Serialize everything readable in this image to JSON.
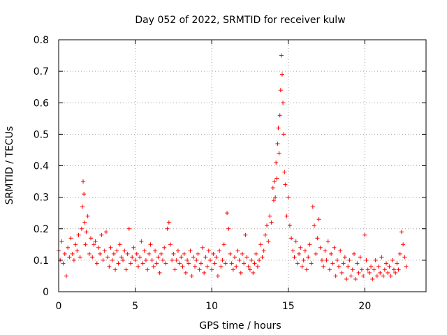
{
  "chart_data": {
    "type": "scatter",
    "title": "Day 052 of 2022, SRMTID for receiver kulw",
    "xlabel": "GPS time / hours",
    "ylabel": "SRMTID / TECUs",
    "xlim": [
      0,
      24
    ],
    "ylim": [
      0,
      0.8
    ],
    "xticks": [
      0,
      5,
      10,
      15,
      20
    ],
    "xtick_labels": [
      "0",
      "5",
      "10",
      "15",
      "20"
    ],
    "yticks": [
      0,
      0.1,
      0.2,
      0.3,
      0.4,
      0.5,
      0.6,
      0.7,
      0.8
    ],
    "ytick_labels": [
      "0",
      "0.1",
      "0.2",
      "0.3",
      "0.4",
      "0.5",
      "0.6",
      "0.7",
      "0.8"
    ],
    "grid": true,
    "marker": "+",
    "marker_color": "#ff0000",
    "series": [
      {
        "name": "SRMTID",
        "x": [
          0.0,
          0.1,
          0.2,
          0.3,
          0.4,
          0.5,
          0.6,
          0.7,
          0.8,
          0.9,
          1.0,
          1.1,
          1.2,
          1.3,
          1.4,
          1.5,
          1.55,
          1.6,
          1.65,
          1.7,
          1.75,
          1.8,
          1.9,
          2.0,
          2.1,
          2.2,
          2.3,
          2.4,
          2.5,
          2.6,
          2.7,
          2.8,
          2.9,
          3.0,
          3.1,
          3.2,
          3.3,
          3.4,
          3.5,
          3.6,
          3.7,
          3.8,
          3.9,
          4.0,
          4.1,
          4.2,
          4.3,
          4.4,
          4.5,
          4.6,
          4.7,
          4.8,
          4.9,
          5.0,
          5.1,
          5.2,
          5.3,
          5.4,
          5.5,
          5.6,
          5.7,
          5.8,
          5.9,
          6.0,
          6.1,
          6.2,
          6.3,
          6.4,
          6.5,
          6.6,
          6.7,
          6.8,
          6.9,
          7.0,
          7.1,
          7.2,
          7.3,
          7.4,
          7.5,
          7.6,
          7.7,
          7.8,
          7.9,
          8.0,
          8.1,
          8.2,
          8.3,
          8.4,
          8.5,
          8.6,
          8.7,
          8.8,
          8.9,
          9.0,
          9.1,
          9.2,
          9.3,
          9.4,
          9.5,
          9.6,
          9.7,
          9.8,
          9.9,
          10.0,
          10.1,
          10.2,
          10.3,
          10.4,
          10.5,
          10.6,
          10.7,
          10.8,
          10.9,
          11.0,
          11.1,
          11.2,
          11.3,
          11.4,
          11.5,
          11.6,
          11.7,
          11.8,
          11.9,
          12.0,
          12.1,
          12.2,
          12.3,
          12.4,
          12.5,
          12.6,
          12.7,
          12.8,
          12.9,
          13.0,
          13.1,
          13.2,
          13.3,
          13.4,
          13.5,
          13.6,
          13.7,
          13.8,
          13.9,
          14.0,
          14.05,
          14.1,
          14.15,
          14.2,
          14.25,
          14.3,
          14.35,
          14.4,
          14.45,
          14.5,
          14.55,
          14.6,
          14.65,
          14.7,
          14.75,
          14.8,
          14.9,
          15.0,
          15.1,
          15.2,
          15.3,
          15.4,
          15.5,
          15.6,
          15.7,
          15.8,
          15.9,
          16.0,
          16.1,
          16.2,
          16.3,
          16.4,
          16.5,
          16.6,
          16.7,
          16.8,
          16.9,
          17.0,
          17.1,
          17.2,
          17.3,
          17.4,
          17.5,
          17.6,
          17.7,
          17.8,
          17.9,
          18.0,
          18.1,
          18.2,
          18.3,
          18.4,
          18.5,
          18.6,
          18.7,
          18.8,
          18.9,
          19.0,
          19.1,
          19.2,
          19.3,
          19.4,
          19.5,
          19.6,
          19.7,
          19.8,
          19.9,
          20.0,
          20.1,
          20.2,
          20.3,
          20.4,
          20.5,
          20.6,
          20.7,
          20.8,
          20.9,
          21.0,
          21.1,
          21.2,
          21.3,
          21.4,
          21.5,
          21.6,
          21.7,
          21.8,
          21.9,
          22.0,
          22.1,
          22.2,
          22.3,
          22.4,
          22.5,
          22.6,
          22.7
        ],
        "y": [
          0.13,
          0.1,
          0.16,
          0.09,
          0.12,
          0.05,
          0.14,
          0.11,
          0.17,
          0.12,
          0.1,
          0.15,
          0.13,
          0.18,
          0.11,
          0.2,
          0.27,
          0.35,
          0.31,
          0.22,
          0.15,
          0.19,
          0.24,
          0.12,
          0.17,
          0.11,
          0.15,
          0.16,
          0.09,
          0.14,
          0.12,
          0.18,
          0.1,
          0.13,
          0.19,
          0.11,
          0.08,
          0.14,
          0.1,
          0.12,
          0.07,
          0.13,
          0.09,
          0.15,
          0.11,
          0.1,
          0.13,
          0.07,
          0.12,
          0.2,
          0.09,
          0.11,
          0.14,
          0.1,
          0.12,
          0.08,
          0.11,
          0.16,
          0.09,
          0.13,
          0.1,
          0.07,
          0.12,
          0.15,
          0.1,
          0.08,
          0.13,
          0.09,
          0.11,
          0.06,
          0.12,
          0.1,
          0.14,
          0.09,
          0.2,
          0.22,
          0.15,
          0.1,
          0.12,
          0.07,
          0.1,
          0.13,
          0.09,
          0.11,
          0.08,
          0.12,
          0.06,
          0.1,
          0.09,
          0.13,
          0.05,
          0.11,
          0.08,
          0.1,
          0.12,
          0.07,
          0.09,
          0.14,
          0.06,
          0.11,
          0.08,
          0.13,
          0.1,
          0.07,
          0.12,
          0.09,
          0.11,
          0.05,
          0.13,
          0.08,
          0.1,
          0.15,
          0.09,
          0.25,
          0.2,
          0.12,
          0.09,
          0.07,
          0.11,
          0.08,
          0.13,
          0.1,
          0.06,
          0.12,
          0.09,
          0.18,
          0.11,
          0.08,
          0.07,
          0.1,
          0.06,
          0.09,
          0.12,
          0.08,
          0.1,
          0.15,
          0.11,
          0.13,
          0.18,
          0.21,
          0.16,
          0.24,
          0.22,
          0.33,
          0.29,
          0.35,
          0.3,
          0.41,
          0.36,
          0.47,
          0.52,
          0.44,
          0.56,
          0.64,
          0.75,
          0.69,
          0.6,
          0.5,
          0.38,
          0.34,
          0.24,
          0.3,
          0.21,
          0.17,
          0.13,
          0.11,
          0.16,
          0.09,
          0.12,
          0.14,
          0.08,
          0.1,
          0.13,
          0.07,
          0.11,
          0.15,
          0.09,
          0.27,
          0.21,
          0.12,
          0.17,
          0.23,
          0.14,
          0.1,
          0.08,
          0.13,
          0.1,
          0.16,
          0.07,
          0.12,
          0.09,
          0.14,
          0.05,
          0.1,
          0.08,
          0.13,
          0.06,
          0.09,
          0.11,
          0.04,
          0.08,
          0.1,
          0.05,
          0.07,
          0.12,
          0.04,
          0.09,
          0.06,
          0.11,
          0.07,
          0.05,
          0.18,
          0.1,
          0.07,
          0.06,
          0.08,
          0.04,
          0.07,
          0.1,
          0.05,
          0.08,
          0.06,
          0.11,
          0.05,
          0.07,
          0.09,
          0.06,
          0.08,
          0.05,
          0.1,
          0.07,
          0.06,
          0.09,
          0.07,
          0.12,
          0.19,
          0.15,
          0.11,
          0.08
        ]
      }
    ]
  }
}
